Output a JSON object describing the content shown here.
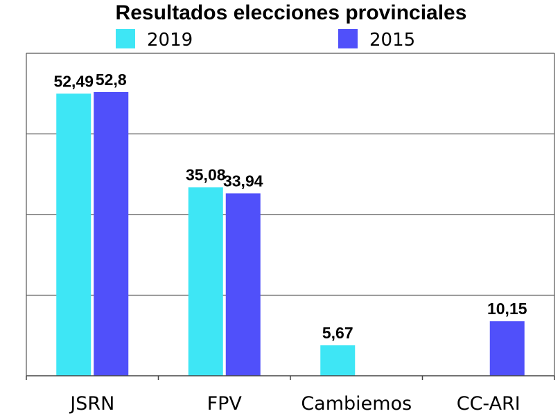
{
  "chart_data": {
    "type": "bar",
    "title": "Resultados elecciones provinciales",
    "categories": [
      "JSRN",
      "FPV",
      "Cambiemos",
      "CC-ARI"
    ],
    "series": [
      {
        "name": "2019",
        "color": "#3ee6f5",
        "values": [
          52.49,
          35.08,
          5.67,
          null
        ],
        "labels": [
          "52,49",
          "35,08",
          "5,67",
          ""
        ]
      },
      {
        "name": "2015",
        "color": "#5050fa",
        "values": [
          52.8,
          33.94,
          null,
          10.15
        ],
        "labels": [
          "52,8",
          "33,94",
          "",
          "10,15"
        ]
      }
    ],
    "ylim": [
      0,
      60
    ],
    "grid": true,
    "legend_position": "top"
  }
}
